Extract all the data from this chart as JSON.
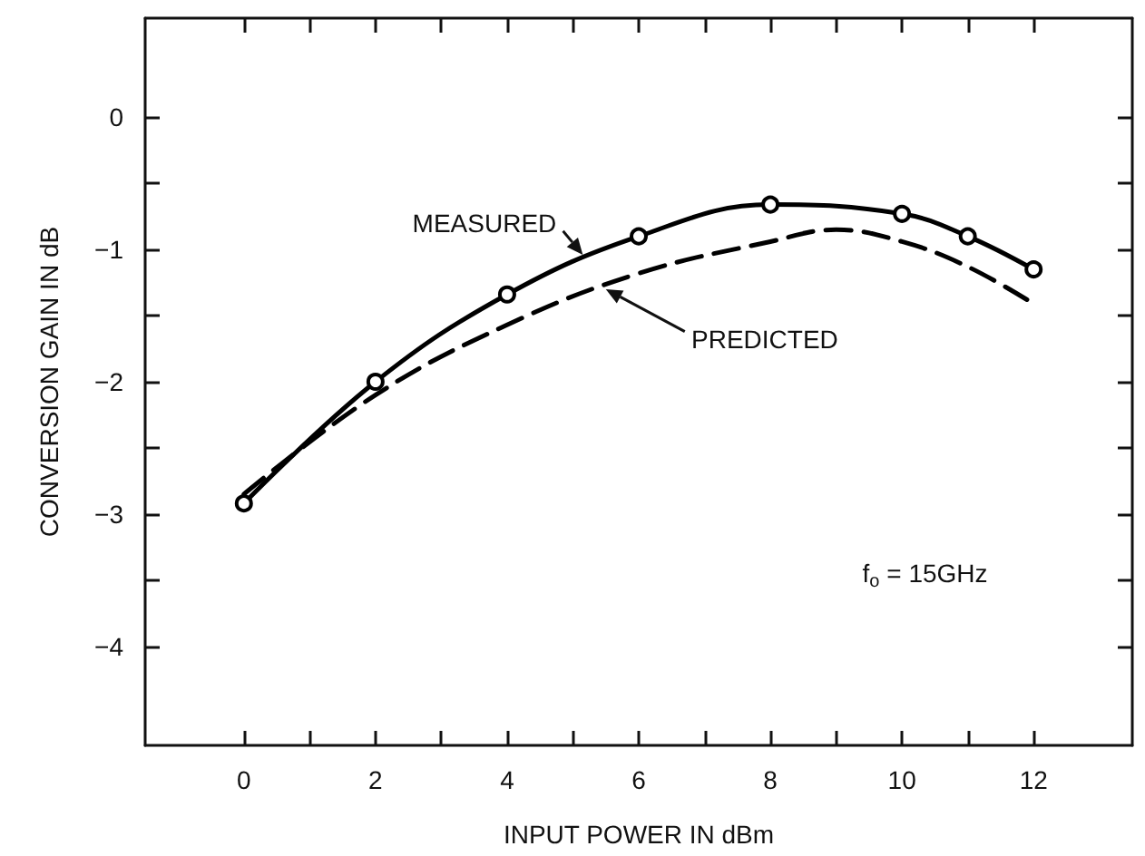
{
  "chart_data": {
    "type": "line",
    "xlabel": "INPUT POWER IN dBm",
    "ylabel": "CONVERSION GAIN IN dB",
    "xlim": [
      -1.5,
      13.5
    ],
    "ylim": [
      -4.75,
      0.75
    ],
    "xticks": [
      0,
      {
        "value": 1,
        "label": null
      },
      2,
      {
        "value": 3,
        "label": null
      },
      4,
      {
        "value": 5,
        "label": null
      },
      6,
      {
        "value": 7,
        "label": null
      },
      8,
      {
        "value": 9,
        "label": null
      },
      10,
      {
        "value": 11,
        "label": null
      },
      12
    ],
    "yticks": [
      {
        "value": -4,
        "label": "−4"
      },
      {
        "value": -3.5,
        "label": null
      },
      {
        "value": -3,
        "label": "−3"
      },
      {
        "value": -2.5,
        "label": null
      },
      {
        "value": -2,
        "label": "−2"
      },
      {
        "value": -1.5,
        "label": null
      },
      {
        "value": -1,
        "label": "−1"
      },
      {
        "value": -0.5,
        "label": null
      },
      0
    ],
    "grid": false,
    "legend": false,
    "series": [
      {
        "name": "MEASURED",
        "color": "#000000",
        "marker": "circle",
        "line_style": "solid",
        "x": [
          0,
          2,
          4,
          6,
          8,
          10,
          11,
          12
        ],
        "values": [
          -2.92,
          -2.0,
          -1.34,
          -0.9,
          -0.66,
          -0.73,
          -0.9,
          -1.15
        ]
      },
      {
        "name": "PREDICTED",
        "color": "#000000",
        "marker": "none",
        "line_style": "dashed",
        "x": [
          0,
          2,
          4,
          6,
          8,
          9,
          10,
          11,
          12
        ],
        "values": [
          -2.85,
          -2.1,
          -1.57,
          -1.18,
          -0.94,
          -0.85,
          -0.94,
          -1.13,
          -1.41
        ]
      }
    ],
    "annotations": [
      "f$_{o}$ = 15GHz"
    ]
  }
}
